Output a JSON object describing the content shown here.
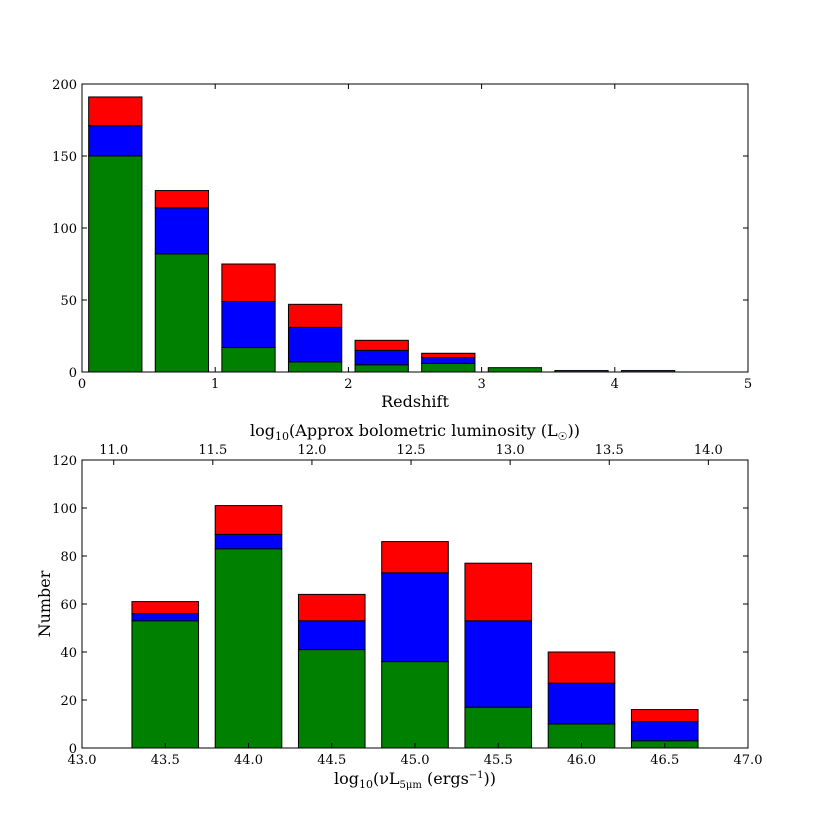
{
  "chart_data": [
    {
      "type": "bar",
      "stacked": true,
      "xlabel": "Redshift",
      "ylabel": "",
      "xlim": [
        0,
        5
      ],
      "ylim": [
        0,
        200
      ],
      "xticks": [
        0,
        1,
        2,
        3,
        4,
        5
      ],
      "xtick_labels": [
        "0",
        "1",
        "2",
        "3",
        "4",
        "5"
      ],
      "yticks": [
        0,
        50,
        100,
        150,
        200
      ],
      "ytick_labels": [
        "0",
        "50",
        "100",
        "150",
        "200"
      ],
      "bar_left": [
        0.05,
        0.55,
        1.05,
        1.55,
        2.05,
        2.55,
        3.05,
        3.55,
        4.05
      ],
      "bar_width": 0.4,
      "series": [
        {
          "name": "green",
          "color": "#008000",
          "values": [
            150,
            82,
            17,
            7,
            5,
            6,
            3,
            1,
            1
          ]
        },
        {
          "name": "blue",
          "color": "#0000ff",
          "values": [
            21,
            32,
            32,
            24,
            10,
            4,
            0,
            0,
            0
          ]
        },
        {
          "name": "red",
          "color": "#ff0000",
          "values": [
            20,
            12,
            26,
            16,
            7,
            3,
            0,
            0,
            0
          ]
        }
      ]
    },
    {
      "type": "bar",
      "stacked": true,
      "xlabel_pre": "log",
      "xlabel_sub": "10",
      "xlabel_mid": "(νL",
      "xlabel_sub2": "5μm",
      "xlabel_post1": " (ergs",
      "xlabel_sup": "−1",
      "xlabel_post2": "))",
      "ylabel": "Number",
      "top_label_pre": "log",
      "top_label_sub": "10",
      "top_label_mid": "(Approx bolometric luminosity (L",
      "top_label_sub2": "☉",
      "top_label_post": "))",
      "xlim": [
        43.0,
        47.0
      ],
      "ylim": [
        0,
        120
      ],
      "xticks": [
        43.0,
        43.5,
        44.0,
        44.5,
        45.0,
        45.5,
        46.0,
        46.5,
        47.0
      ],
      "xtick_labels": [
        "43.0",
        "43.5",
        "44.0",
        "44.5",
        "45.0",
        "45.5",
        "46.0",
        "46.5",
        "47.0"
      ],
      "yticks": [
        0,
        20,
        40,
        60,
        80,
        100,
        120
      ],
      "ytick_labels": [
        "0",
        "20",
        "40",
        "60",
        "80",
        "100",
        "120"
      ],
      "top_ticks": [
        11.0,
        11.5,
        12.0,
        12.5,
        13.0,
        13.5,
        14.0
      ],
      "top_tick_labels": [
        "11.0",
        "11.5",
        "12.0",
        "12.5",
        "13.0",
        "13.5",
        "14.0"
      ],
      "top_axis_map": {
        "bottom": [
          43.0,
          47.0
        ],
        "top": [
          10.84,
          14.2
        ]
      },
      "bar_left": [
        43.3,
        43.8,
        44.3,
        44.8,
        45.3,
        45.8,
        46.3
      ],
      "bar_width": 0.4,
      "series": [
        {
          "name": "green",
          "color": "#008000",
          "values": [
            53,
            83,
            41,
            36,
            17,
            10,
            3
          ]
        },
        {
          "name": "blue",
          "color": "#0000ff",
          "values": [
            3,
            6,
            12,
            37,
            36,
            17,
            8
          ]
        },
        {
          "name": "red",
          "color": "#ff0000",
          "values": [
            5,
            12,
            11,
            13,
            24,
            13,
            5
          ]
        }
      ]
    }
  ]
}
